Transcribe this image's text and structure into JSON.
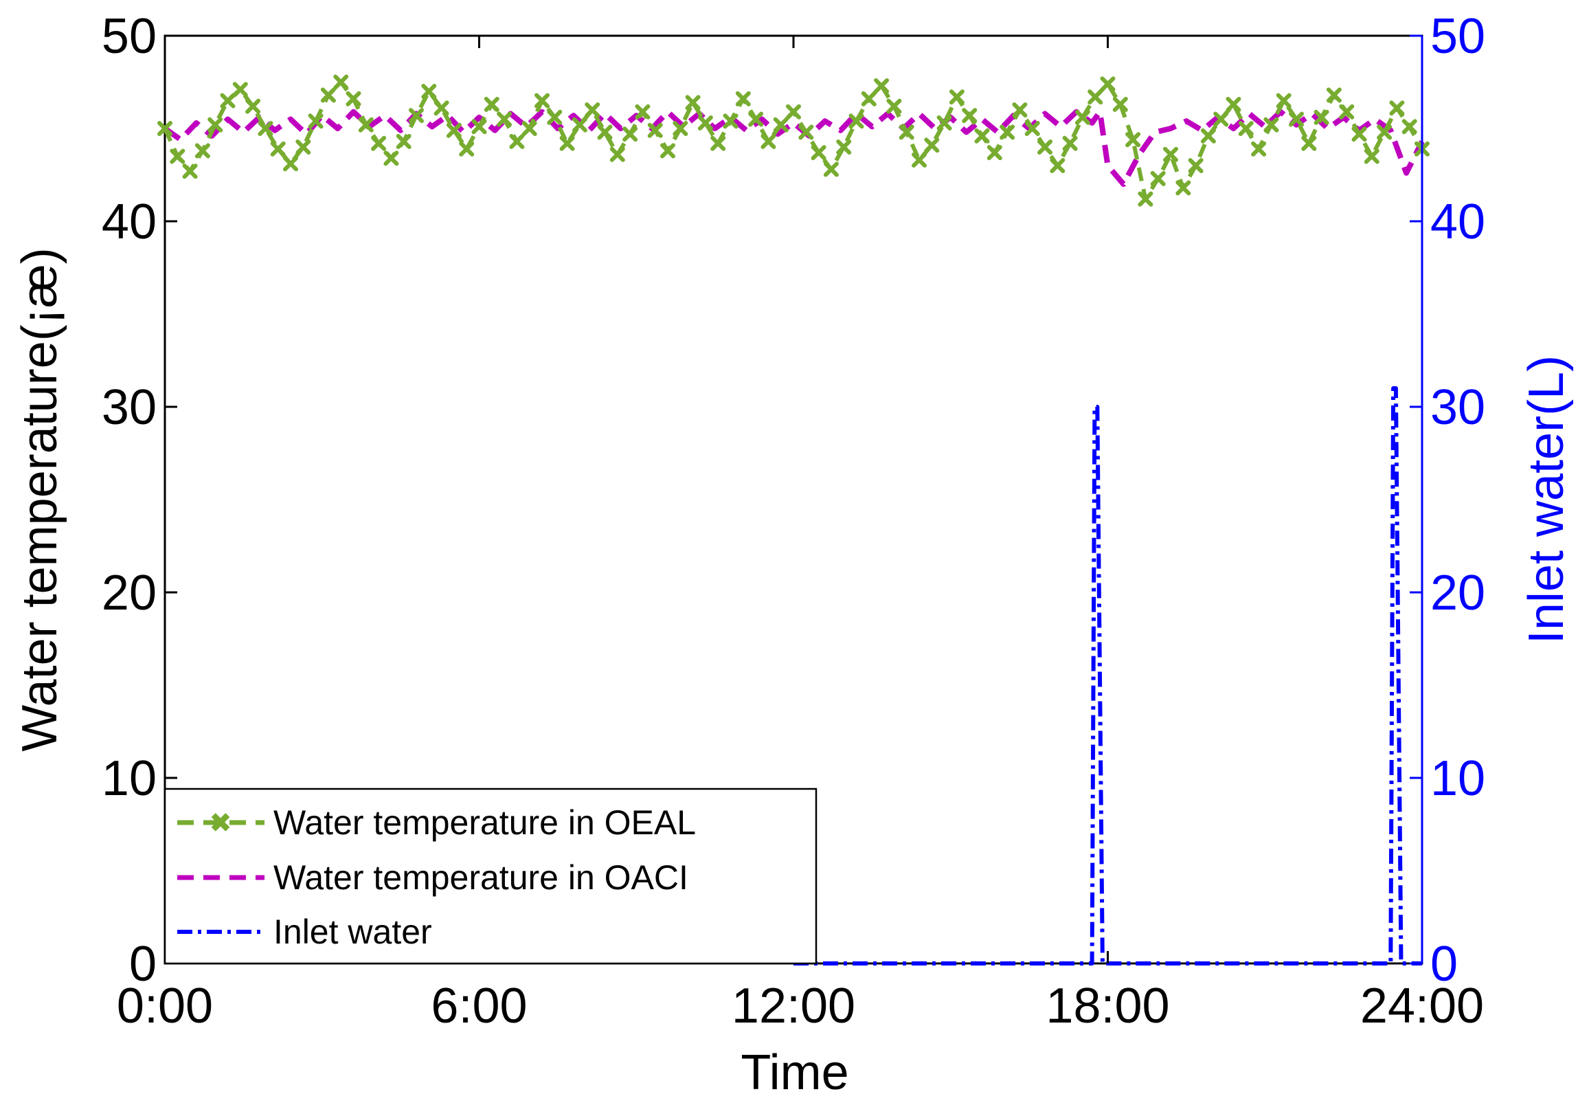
{
  "chart_data": {
    "type": "line",
    "xlabel": "Time",
    "ylabel": "Water temperature(¡æ)",
    "y2label": "Inlet water(L)",
    "x_tick_labels": [
      "0:00",
      "6:00",
      "12:00",
      "18:00",
      "24:00"
    ],
    "x_ticks_hours": [
      0,
      6,
      12,
      18,
      24
    ],
    "xlim_hours": [
      0,
      24
    ],
    "ylim": [
      0,
      50
    ],
    "y_ticks": [
      0,
      10,
      20,
      30,
      40,
      50
    ],
    "y2lim": [
      0,
      50
    ],
    "y2_ticks": [
      0,
      10,
      20,
      30,
      40,
      50
    ],
    "grid": false,
    "legend_position": "bottom-left",
    "colors": {
      "oeal": "#77ac30",
      "oaci": "#bf00bf",
      "inlet": "#0000ff",
      "right_axis": "#0000ff",
      "axis": "#000000"
    },
    "series": [
      {
        "name": "Water temperature in OEAL",
        "axis": "left",
        "style": "dashed-x-markers",
        "x_hours": [
          0,
          0.24,
          0.48,
          0.72,
          0.96,
          1.2,
          1.44,
          1.68,
          1.92,
          2.16,
          2.4,
          2.64,
          2.88,
          3.12,
          3.36,
          3.6,
          3.84,
          4.08,
          4.32,
          4.56,
          4.8,
          5.04,
          5.28,
          5.52,
          5.76,
          6.0,
          6.24,
          6.48,
          6.72,
          6.96,
          7.2,
          7.44,
          7.68,
          7.92,
          8.16,
          8.4,
          8.64,
          8.88,
          9.12,
          9.36,
          9.6,
          9.84,
          10.08,
          10.32,
          10.56,
          10.8,
          11.04,
          11.28,
          11.52,
          11.76,
          12.0,
          12.24,
          12.48,
          12.72,
          12.96,
          13.2,
          13.44,
          13.68,
          13.92,
          14.16,
          14.4,
          14.64,
          14.88,
          15.12,
          15.36,
          15.6,
          15.84,
          16.08,
          16.32,
          16.56,
          16.8,
          17.04,
          17.28,
          17.52,
          17.76,
          18.0,
          18.24,
          18.48,
          18.72,
          18.96,
          19.2,
          19.44,
          19.68,
          19.92,
          20.16,
          20.4,
          20.64,
          20.88,
          21.12,
          21.36,
          21.6,
          21.84,
          22.08,
          22.32,
          22.56,
          22.8,
          23.04,
          23.28,
          23.52,
          23.76,
          24.0
        ],
        "values": [
          45.0,
          43.5,
          42.7,
          43.8,
          45.2,
          46.5,
          47.1,
          46.2,
          45.0,
          43.9,
          43.1,
          44.0,
          45.4,
          46.8,
          47.5,
          46.6,
          45.2,
          44.2,
          43.4,
          44.3,
          45.7,
          47.0,
          46.1,
          44.9,
          43.9,
          45.1,
          46.3,
          45.5,
          44.3,
          45.0,
          46.5,
          45.6,
          44.2,
          45.2,
          46.0,
          44.8,
          43.6,
          44.7,
          45.9,
          44.9,
          43.8,
          45.0,
          46.4,
          45.3,
          44.2,
          45.4,
          46.6,
          45.5,
          44.3,
          45.2,
          45.9,
          44.8,
          43.7,
          42.8,
          44.0,
          45.4,
          46.6,
          47.3,
          46.2,
          44.8,
          43.3,
          44.1,
          45.3,
          46.7,
          45.7,
          44.6,
          43.7,
          44.8,
          46.0,
          45.0,
          44.0,
          43.0,
          44.2,
          45.6,
          46.7,
          47.4,
          46.3,
          44.4,
          41.2,
          42.3,
          43.6,
          41.8,
          43.0,
          44.6,
          45.5,
          46.3,
          45.0,
          43.9,
          45.2,
          46.5,
          45.5,
          44.2,
          45.6,
          46.8,
          45.9,
          44.7,
          43.5,
          44.8,
          46.1,
          45.1,
          43.9
        ]
      },
      {
        "name": "Water temperature in OACI",
        "axis": "left",
        "style": "dashed",
        "x_hours": [
          0,
          0.3,
          0.6,
          0.9,
          1.2,
          1.5,
          1.8,
          2.1,
          2.4,
          2.7,
          3.0,
          3.3,
          3.6,
          3.9,
          4.2,
          4.5,
          4.8,
          5.1,
          5.4,
          5.7,
          6.0,
          6.3,
          6.6,
          6.9,
          7.2,
          7.5,
          7.8,
          8.1,
          8.4,
          8.7,
          9.0,
          9.3,
          9.6,
          9.9,
          10.2,
          10.5,
          10.8,
          11.1,
          11.4,
          11.7,
          12.0,
          12.3,
          12.6,
          12.9,
          13.2,
          13.5,
          13.8,
          14.1,
          14.4,
          14.7,
          15.0,
          15.3,
          15.6,
          15.9,
          16.2,
          16.5,
          16.8,
          17.1,
          17.4,
          17.7,
          17.85,
          18.0,
          18.3,
          18.6,
          18.9,
          19.2,
          19.5,
          19.8,
          20.1,
          20.4,
          20.7,
          21.0,
          21.3,
          21.6,
          21.9,
          22.2,
          22.5,
          22.8,
          23.1,
          23.4,
          23.7,
          24.0
        ],
        "values": [
          45.0,
          44.4,
          45.3,
          44.6,
          45.5,
          44.8,
          45.6,
          44.9,
          45.5,
          44.7,
          45.7,
          45.0,
          45.9,
          45.1,
          45.7,
          44.9,
          45.8,
          45.1,
          45.7,
          44.8,
          45.6,
          44.9,
          45.8,
          45.1,
          45.9,
          45.0,
          45.7,
          44.9,
          45.8,
          45.0,
          45.7,
          45.0,
          45.9,
          45.1,
          45.8,
          45.0,
          45.6,
          44.9,
          45.5,
          44.7,
          45.3,
          44.6,
          45.4,
          44.9,
          45.8,
          45.1,
          45.8,
          45.0,
          45.8,
          45.0,
          45.6,
          44.8,
          45.5,
          44.8,
          45.7,
          45.0,
          45.8,
          45.1,
          45.9,
          45.3,
          45.9,
          43.0,
          42.0,
          43.6,
          44.8,
          45.0,
          45.4,
          44.9,
          45.6,
          45.0,
          45.8,
          45.1,
          45.9,
          45.2,
          45.8,
          45.0,
          45.6,
          44.9,
          45.5,
          44.9,
          42.6,
          44.3
        ]
      },
      {
        "name": "Inlet water",
        "axis": "right",
        "style": "dash-dot",
        "x_hours": [
          12.0,
          17.5,
          17.7,
          17.75,
          17.8,
          17.9,
          18.1,
          23.2,
          23.4,
          23.45,
          23.5,
          23.6,
          23.65,
          24.0
        ],
        "values": [
          0,
          0,
          0,
          30,
          30,
          0,
          0,
          0,
          0,
          31,
          31,
          0,
          0,
          0
        ]
      }
    ]
  }
}
